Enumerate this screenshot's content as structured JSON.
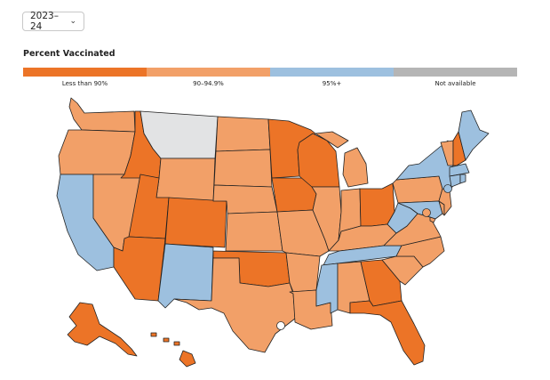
{
  "year_select": {
    "value": "2023–24",
    "icon": "chevron-down-icon"
  },
  "legend": {
    "title": "Percent Vaccinated",
    "items": [
      {
        "label": "Less than 90%",
        "color": "#ec7427"
      },
      {
        "label": "90–94.9%",
        "color": "#f2a068"
      },
      {
        "label": "95%+",
        "color": "#9dc0df"
      },
      {
        "label": "Not available",
        "color": "#b5b5b5"
      }
    ]
  },
  "map": {
    "title": "",
    "colors": {
      "low": "#ec7427",
      "mid": "#f2a068",
      "high": "#9dc0df",
      "na": "#e2e3e4"
    },
    "states": {
      "WA": "mid",
      "OR": "mid",
      "CA": "high",
      "NV": "mid",
      "ID": "low",
      "MT": "na",
      "WY": "mid",
      "UT": "low",
      "AZ": "low",
      "CO": "low",
      "NM": "high",
      "ND": "mid",
      "SD": "mid",
      "NE": "mid",
      "KS": "mid",
      "OK": "low",
      "TX": "mid",
      "MN": "low",
      "IA": "low",
      "MO": "mid",
      "AR": "mid",
      "LA": "mid",
      "WI": "low",
      "IL": "mid",
      "MI": "mid",
      "IN": "mid",
      "OH": "low",
      "KY": "mid",
      "TN": "high",
      "MS": "high",
      "AL": "mid",
      "GA": "low",
      "FL": "low",
      "SC": "mid",
      "NC": "mid",
      "VA": "mid",
      "WV": "high",
      "PA": "mid",
      "NY": "high",
      "VT": "mid",
      "NH": "low",
      "ME": "high",
      "MA": "high",
      "CT": "high",
      "RI": "high",
      "NJ": "mid",
      "DE": "mid",
      "MD": "high",
      "DC": "mid",
      "AK": "low",
      "HI": "low"
    }
  }
}
